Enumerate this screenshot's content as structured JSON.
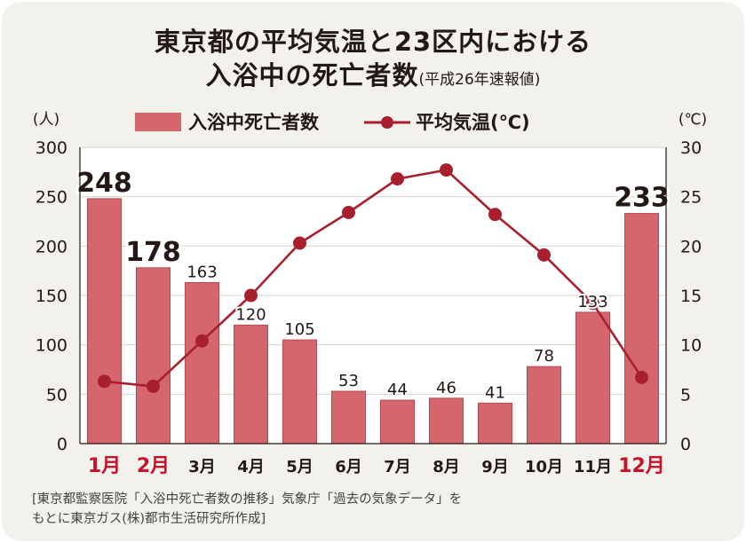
{
  "title": {
    "line1": "東京都の平均気温と23区内における",
    "line2_main": "入浴中の死亡者数",
    "line2_sub": "(平成26年速報値)"
  },
  "source": {
    "line1": "[東京都監察医院「入浴中死亡者数の推移」気象庁「過去の気象データ」を",
    "line2": "もとに東京ガス(株)都市生活研究所作成]"
  },
  "chart_data": {
    "type": "bar+line",
    "categories": [
      "1月",
      "2月",
      "3月",
      "4月",
      "5月",
      "6月",
      "7月",
      "8月",
      "9月",
      "10月",
      "11月",
      "12月"
    ],
    "highlight_categories": [
      "1月",
      "2月",
      "12月"
    ],
    "left_axis": {
      "unit_label": "(人)",
      "ylim": [
        0,
        300
      ],
      "ticks": [
        "0",
        "50",
        "100",
        "150",
        "200",
        "250",
        "300"
      ]
    },
    "right_axis": {
      "unit_label": "(℃)",
      "ylim": [
        0,
        30
      ],
      "ticks": [
        "0",
        "5",
        "10",
        "15",
        "20",
        "25",
        "30"
      ]
    },
    "legend": {
      "bar_label": "入浴中死亡者数",
      "line_label": "平均気温(℃)"
    },
    "series": [
      {
        "name": "入浴中死亡者数",
        "kind": "bar",
        "axis": "left",
        "values": [
          248,
          178,
          163,
          120,
          105,
          53,
          44,
          46,
          41,
          78,
          133,
          233
        ],
        "labels": [
          "248",
          "178",
          "163",
          "120",
          "105",
          "53",
          "44",
          "46",
          "41",
          "78",
          "133",
          "233"
        ],
        "large_labels": [
          "248",
          "178",
          "233"
        ]
      },
      {
        "name": "平均気温(℃)",
        "kind": "line",
        "axis": "right",
        "values": [
          6.3,
          5.8,
          10.4,
          15.0,
          20.3,
          23.4,
          26.8,
          27.7,
          23.2,
          19.1,
          14.2,
          6.7
        ]
      }
    ]
  },
  "colors": {
    "bar": "#d6666e",
    "bar_border": "#b74852",
    "line": "#a8202e",
    "highlight_text": "#c8112a",
    "text": "#231815"
  }
}
